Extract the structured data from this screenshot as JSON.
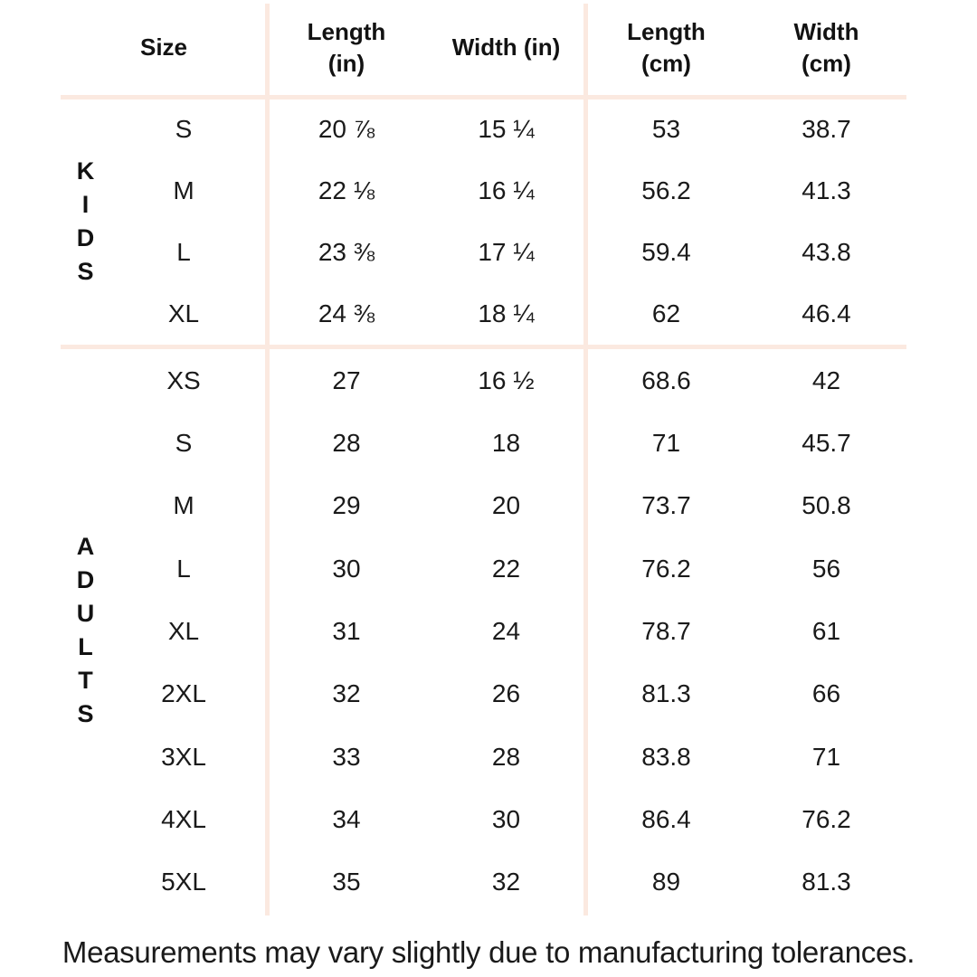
{
  "colors": {
    "background": "#FFFFFF",
    "divider": "#FBE9E0",
    "text": "#1A1A1A",
    "heading": "#121212"
  },
  "chart_data": {
    "type": "table",
    "columns": [
      "Size",
      "Length (in)",
      "Width (in)",
      "Length (cm)",
      "Width (cm)"
    ],
    "header": {
      "size": "Size",
      "length_in": "Length\n(in)",
      "width_in": "Width (in)",
      "length_cm": "Length\n(cm)",
      "width_cm": "Width\n(cm)"
    },
    "row_groups": [
      {
        "label": "KIDS",
        "label_display": "K\nI\nD\nS",
        "rows": [
          {
            "size": "S",
            "length_in": "20 ⅞",
            "width_in": "15 ¼",
            "length_cm": "53",
            "width_cm": "38.7"
          },
          {
            "size": "M",
            "length_in": "22 ⅛",
            "width_in": "16 ¼",
            "length_cm": "56.2",
            "width_cm": "41.3"
          },
          {
            "size": "L",
            "length_in": "23 ⅜",
            "width_in": "17 ¼",
            "length_cm": "59.4",
            "width_cm": "43.8"
          },
          {
            "size": "XL",
            "length_in": "24 ⅜",
            "width_in": "18 ¼",
            "length_cm": "62",
            "width_cm": "46.4"
          }
        ]
      },
      {
        "label": "ADULTS",
        "label_display": "A\nD\nU\nL\nT\nS",
        "rows": [
          {
            "size": "XS",
            "length_in": "27",
            "width_in": "16 ½",
            "length_cm": "68.6",
            "width_cm": "42"
          },
          {
            "size": "S",
            "length_in": "28",
            "width_in": "18",
            "length_cm": "71",
            "width_cm": "45.7"
          },
          {
            "size": "M",
            "length_in": "29",
            "width_in": "20",
            "length_cm": "73.7",
            "width_cm": "50.8"
          },
          {
            "size": "L",
            "length_in": "30",
            "width_in": "22",
            "length_cm": "76.2",
            "width_cm": "56"
          },
          {
            "size": "XL",
            "length_in": "31",
            "width_in": "24",
            "length_cm": "78.7",
            "width_cm": "61"
          },
          {
            "size": "2XL",
            "length_in": "32",
            "width_in": "26",
            "length_cm": "81.3",
            "width_cm": "66"
          },
          {
            "size": "3XL",
            "length_in": "33",
            "width_in": "28",
            "length_cm": "83.8",
            "width_cm": "71"
          },
          {
            "size": "4XL",
            "length_in": "34",
            "width_in": "30",
            "length_cm": "86.4",
            "width_cm": "76.2"
          },
          {
            "size": "5XL",
            "length_in": "35",
            "width_in": "32",
            "length_cm": "89",
            "width_cm": "81.3"
          }
        ]
      }
    ]
  },
  "footer": {
    "note": "Measurements may vary slightly due to manufacturing tolerances."
  }
}
